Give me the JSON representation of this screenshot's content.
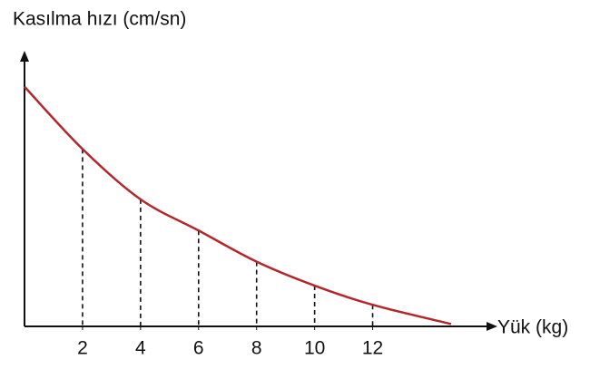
{
  "chart_data": {
    "type": "line",
    "y_label": "Kasılma hızı (cm/sn)",
    "x_label": "Yük (kg)",
    "x": [
      0,
      2,
      4,
      6,
      8,
      10,
      12,
      14.7
    ],
    "series": [
      {
        "color": "#b3262b",
        "values": [
          100,
          74,
          53,
          40,
          27,
          17,
          9,
          1
        ]
      }
    ],
    "drop_lines": [
      1,
      2,
      3,
      4,
      5,
      6
    ],
    "xlim": [
      0,
      16.3
    ],
    "ylim": [
      0,
      115
    ],
    "xticks": [
      2,
      4,
      6,
      8,
      10,
      12
    ]
  }
}
